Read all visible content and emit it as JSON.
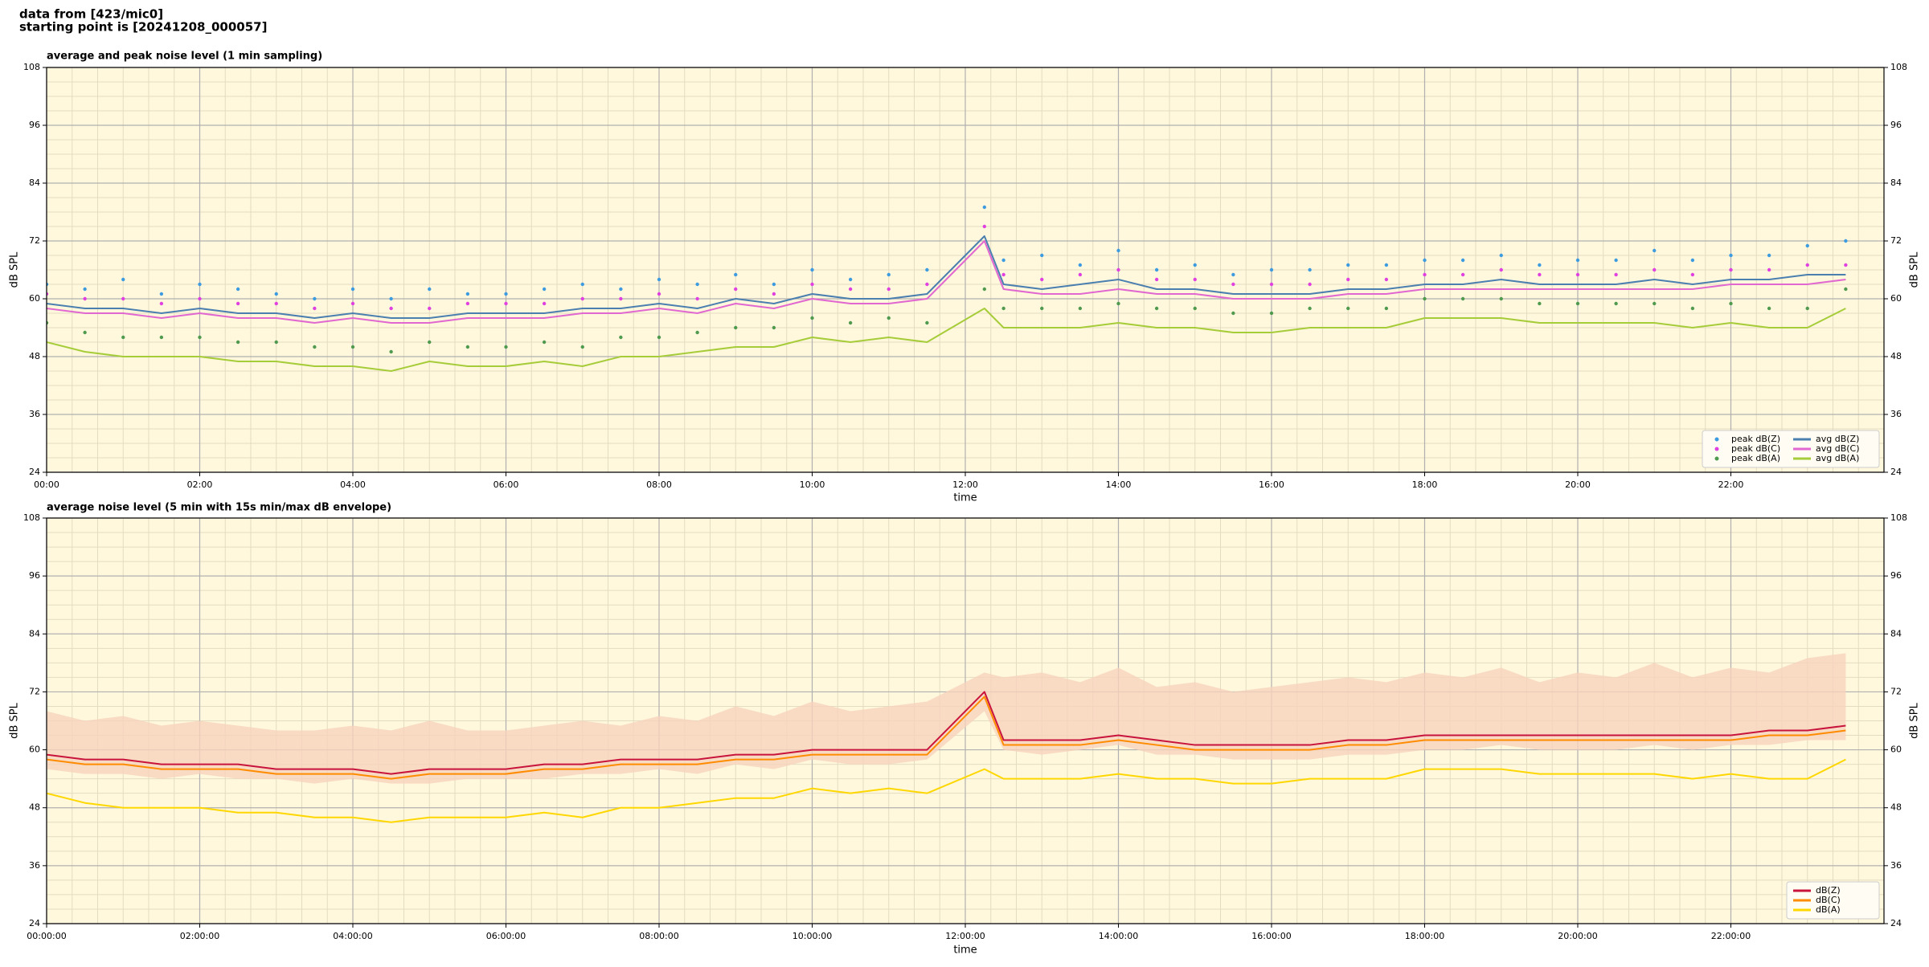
{
  "header": {
    "lines": [
      "data from [423/mic0]",
      "starting point is [20241208_000057]"
    ]
  },
  "chart_data": [
    {
      "type": "line",
      "title": "average and peak noise level (1 min sampling)",
      "xlabel": "time",
      "ylabel": "dB SPL",
      "background": "#fff8dc",
      "grid": true,
      "legend": "lower right",
      "legend_columns": 2,
      "xlim": [
        0,
        24
      ],
      "ylim": [
        24,
        108
      ],
      "xticks": [
        {
          "value": 0,
          "label": "00:00"
        },
        {
          "value": 2,
          "label": "02:00"
        },
        {
          "value": 4,
          "label": "04:00"
        },
        {
          "value": 6,
          "label": "06:00"
        },
        {
          "value": 8,
          "label": "08:00"
        },
        {
          "value": 10,
          "label": "10:00"
        },
        {
          "value": 12,
          "label": "12:00"
        },
        {
          "value": 14,
          "label": "14:00"
        },
        {
          "value": 16,
          "label": "16:00"
        },
        {
          "value": 18,
          "label": "18:00"
        },
        {
          "value": 20,
          "label": "20:00"
        },
        {
          "value": 22,
          "label": "22:00"
        }
      ],
      "yticks": [
        24,
        36,
        48,
        60,
        72,
        84,
        96,
        108
      ],
      "x": [
        0,
        0.5,
        1,
        1.5,
        2,
        2.5,
        3,
        3.5,
        4,
        4.5,
        5,
        5.5,
        6,
        6.5,
        7,
        7.5,
        8,
        8.5,
        9,
        9.5,
        10,
        10.5,
        11,
        11.5,
        12.25,
        12.5,
        13,
        13.5,
        14,
        14.5,
        15,
        15.5,
        16,
        16.5,
        17,
        17.5,
        18,
        18.5,
        19,
        19.5,
        20,
        20.5,
        21,
        21.5,
        22,
        22.5,
        23,
        23.5
      ],
      "series": [
        {
          "name": "peak dB(Z)",
          "marker": "scatter",
          "color": "#3d9be0",
          "values": [
            63,
            62,
            64,
            61,
            63,
            62,
            61,
            60,
            62,
            60,
            62,
            61,
            61,
            62,
            63,
            62,
            64,
            63,
            65,
            63,
            66,
            64,
            65,
            66,
            79,
            68,
            69,
            67,
            70,
            66,
            67,
            65,
            66,
            66,
            67,
            67,
            68,
            68,
            69,
            67,
            68,
            68,
            70,
            68,
            69,
            69,
            71,
            72
          ]
        },
        {
          "name": "peak dB(C)",
          "marker": "scatter",
          "color": "#e040e0",
          "values": [
            61,
            60,
            60,
            59,
            60,
            59,
            59,
            58,
            59,
            58,
            58,
            59,
            59,
            59,
            60,
            60,
            61,
            60,
            62,
            61,
            63,
            62,
            62,
            63,
            75,
            65,
            64,
            65,
            66,
            64,
            64,
            63,
            63,
            63,
            64,
            64,
            65,
            65,
            66,
            65,
            65,
            65,
            66,
            65,
            66,
            66,
            67,
            67
          ]
        },
        {
          "name": "peak dB(A)",
          "marker": "scatter",
          "color": "#4f9a4f",
          "values": [
            55,
            53,
            52,
            52,
            52,
            51,
            51,
            50,
            50,
            49,
            51,
            50,
            50,
            51,
            50,
            52,
            52,
            53,
            54,
            54,
            56,
            55,
            56,
            55,
            62,
            58,
            58,
            58,
            59,
            58,
            58,
            57,
            57,
            58,
            58,
            58,
            60,
            60,
            60,
            59,
            59,
            59,
            59,
            58,
            59,
            58,
            58,
            62
          ]
        },
        {
          "name": "avg dB(Z)",
          "marker": "line",
          "color": "#4a7fb0",
          "values": [
            59,
            58,
            58,
            57,
            58,
            57,
            57,
            56,
            57,
            56,
            56,
            57,
            57,
            57,
            58,
            58,
            59,
            58,
            60,
            59,
            61,
            60,
            60,
            61,
            73,
            63,
            62,
            63,
            64,
            62,
            62,
            61,
            61,
            61,
            62,
            62,
            63,
            63,
            64,
            63,
            63,
            63,
            64,
            63,
            64,
            64,
            65,
            65
          ]
        },
        {
          "name": "avg dB(C)",
          "marker": "line",
          "color": "#e068d0",
          "values": [
            58,
            57,
            57,
            56,
            57,
            56,
            56,
            55,
            56,
            55,
            55,
            56,
            56,
            56,
            57,
            57,
            58,
            57,
            59,
            58,
            60,
            59,
            59,
            60,
            72,
            62,
            61,
            61,
            62,
            61,
            61,
            60,
            60,
            60,
            61,
            61,
            62,
            62,
            62,
            62,
            62,
            62,
            62,
            62,
            63,
            63,
            63,
            64
          ]
        },
        {
          "name": "avg dB(A)",
          "marker": "line",
          "color": "#a6cc3a",
          "values": [
            51,
            49,
            48,
            48,
            48,
            47,
            47,
            46,
            46,
            45,
            47,
            46,
            46,
            47,
            46,
            48,
            48,
            49,
            50,
            50,
            52,
            51,
            52,
            51,
            58,
            54,
            54,
            54,
            55,
            54,
            54,
            53,
            53,
            54,
            54,
            54,
            56,
            56,
            56,
            55,
            55,
            55,
            55,
            54,
            55,
            54,
            54,
            58
          ]
        }
      ]
    },
    {
      "type": "line",
      "title": "average noise level (5 min with 15s min/max dB envelope)",
      "xlabel": "time",
      "ylabel": "dB SPL",
      "background": "#fff8dc",
      "grid": true,
      "legend": "lower right",
      "legend_columns": 1,
      "xlim": [
        0,
        24
      ],
      "ylim": [
        24,
        108
      ],
      "xticks": [
        {
          "value": 0,
          "label": "00:00:00"
        },
        {
          "value": 2,
          "label": "02:00:00"
        },
        {
          "value": 4,
          "label": "04:00:00"
        },
        {
          "value": 6,
          "label": "06:00:00"
        },
        {
          "value": 8,
          "label": "08:00:00"
        },
        {
          "value": 10,
          "label": "10:00:00"
        },
        {
          "value": 12,
          "label": "12:00:00"
        },
        {
          "value": 14,
          "label": "14:00:00"
        },
        {
          "value": 16,
          "label": "16:00:00"
        },
        {
          "value": 18,
          "label": "18:00:00"
        },
        {
          "value": 20,
          "label": "20:00:00"
        },
        {
          "value": 22,
          "label": "22:00:00"
        }
      ],
      "yticks": [
        24,
        36,
        48,
        60,
        72,
        84,
        96,
        108
      ],
      "x": [
        0,
        0.5,
        1,
        1.5,
        2,
        2.5,
        3,
        3.5,
        4,
        4.5,
        5,
        5.5,
        6,
        6.5,
        7,
        7.5,
        8,
        8.5,
        9,
        9.5,
        10,
        10.5,
        11,
        11.5,
        12.25,
        12.5,
        13,
        13.5,
        14,
        14.5,
        15,
        15.5,
        16,
        16.5,
        17,
        17.5,
        18,
        18.5,
        19,
        19.5,
        20,
        20.5,
        21,
        21.5,
        22,
        22.5,
        23,
        23.5
      ],
      "envelope": {
        "color": "#f7d2bd",
        "high": [
          68,
          66,
          67,
          65,
          66,
          65,
          64,
          64,
          65,
          64,
          66,
          64,
          64,
          65,
          66,
          65,
          67,
          66,
          69,
          67,
          70,
          68,
          69,
          70,
          76,
          75,
          76,
          74,
          77,
          73,
          74,
          72,
          73,
          74,
          75,
          74,
          76,
          75,
          77,
          74,
          76,
          75,
          78,
          75,
          77,
          76,
          79,
          80
        ],
        "low": [
          56,
          55,
          55,
          54,
          55,
          54,
          54,
          53,
          54,
          53,
          53,
          54,
          54,
          54,
          55,
          55,
          56,
          55,
          57,
          56,
          58,
          57,
          57,
          58,
          68,
          60,
          59,
          60,
          61,
          59,
          59,
          58,
          58,
          58,
          59,
          59,
          60,
          60,
          61,
          60,
          60,
          60,
          61,
          60,
          61,
          61,
          62,
          62
        ]
      },
      "series": [
        {
          "name": "dB(Z)",
          "marker": "line",
          "color": "#c8143c",
          "values": [
            59,
            58,
            58,
            57,
            57,
            57,
            56,
            56,
            56,
            55,
            56,
            56,
            56,
            57,
            57,
            58,
            58,
            58,
            59,
            59,
            60,
            60,
            60,
            60,
            72,
            62,
            62,
            62,
            63,
            62,
            61,
            61,
            61,
            61,
            62,
            62,
            63,
            63,
            63,
            63,
            63,
            63,
            63,
            63,
            63,
            64,
            64,
            65
          ]
        },
        {
          "name": "dB(C)",
          "marker": "line",
          "color": "#ff8c00",
          "values": [
            58,
            57,
            57,
            56,
            56,
            56,
            55,
            55,
            55,
            54,
            55,
            55,
            55,
            56,
            56,
            57,
            57,
            57,
            58,
            58,
            59,
            59,
            59,
            59,
            71,
            61,
            61,
            61,
            62,
            61,
            60,
            60,
            60,
            60,
            61,
            61,
            62,
            62,
            62,
            62,
            62,
            62,
            62,
            62,
            62,
            63,
            63,
            64
          ]
        },
        {
          "name": "dB(A)",
          "marker": "line",
          "color": "#ffd700",
          "values": [
            51,
            49,
            48,
            48,
            48,
            47,
            47,
            46,
            46,
            45,
            46,
            46,
            46,
            47,
            46,
            48,
            48,
            49,
            50,
            50,
            52,
            51,
            52,
            51,
            56,
            54,
            54,
            54,
            55,
            54,
            54,
            53,
            53,
            54,
            54,
            54,
            56,
            56,
            56,
            55,
            55,
            55,
            55,
            54,
            55,
            54,
            54,
            58
          ]
        }
      ]
    }
  ]
}
